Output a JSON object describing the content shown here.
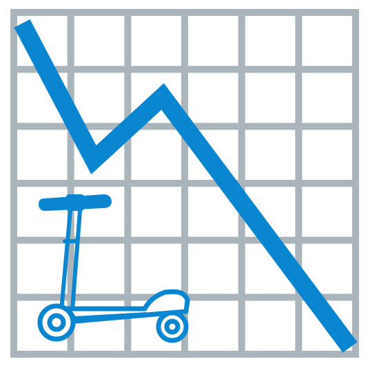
{
  "icon": {
    "subject": "scooter-icon",
    "trend": "declining-trend-line"
  },
  "colors": {
    "background": "#ffffff",
    "grid": "#aab4bb",
    "accent": "#0a86d1",
    "scooter_fill": "#ffffff"
  },
  "grid": {
    "columns": 6,
    "rows": 6
  }
}
